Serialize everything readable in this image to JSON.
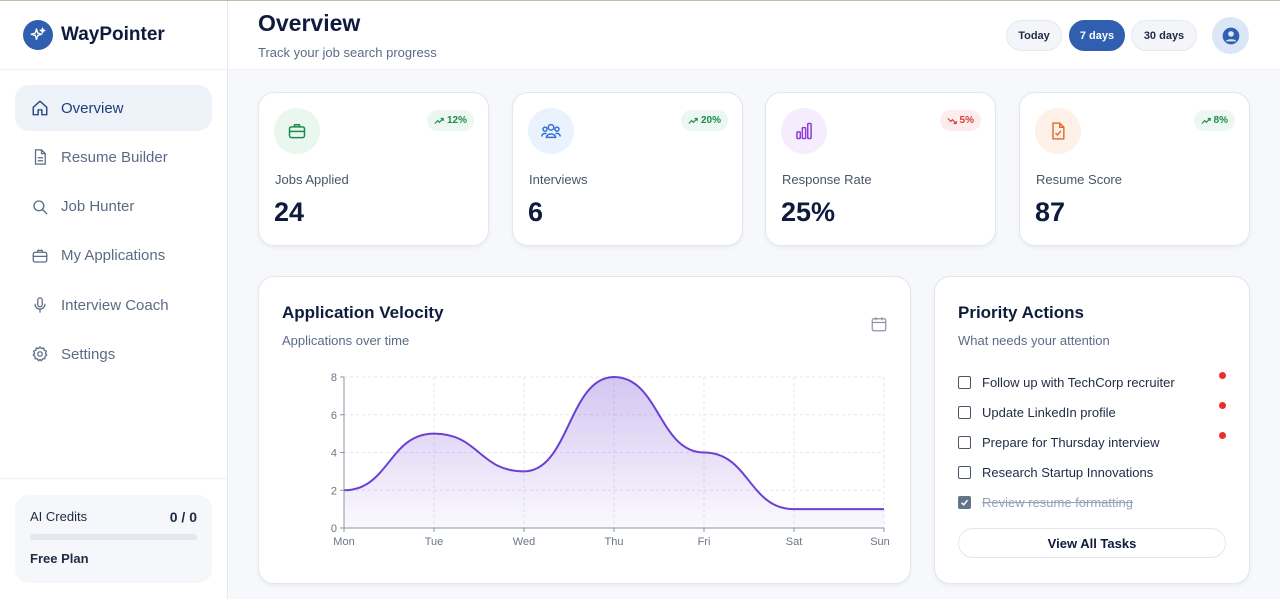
{
  "brand": {
    "name": "WayPointer",
    "accent": "#2f5fae"
  },
  "sidebar": {
    "items": [
      {
        "label": "Overview",
        "icon": "home-icon",
        "active": true
      },
      {
        "label": "Resume Builder",
        "icon": "document-icon",
        "active": false
      },
      {
        "label": "Job Hunter",
        "icon": "search-icon",
        "active": false
      },
      {
        "label": "My Applications",
        "icon": "briefcase-icon",
        "active": false
      },
      {
        "label": "Interview Coach",
        "icon": "microphone-icon",
        "active": false
      },
      {
        "label": "Settings",
        "icon": "gear-icon",
        "active": false
      }
    ],
    "credits": {
      "label": "AI Credits",
      "value": "0 / 0",
      "used_fraction": 0,
      "plan": "Free Plan"
    }
  },
  "header": {
    "title": "Overview",
    "subtitle": "Track your job search progress",
    "ranges": [
      "Today",
      "7 days",
      "30 days"
    ],
    "active_range": "7 days"
  },
  "stats": [
    {
      "label": "Jobs Applied",
      "value": "24",
      "change": "12%",
      "trend": "up",
      "icon": "briefcase-icon",
      "color": "#1e8a4f"
    },
    {
      "label": "Interviews",
      "value": "6",
      "change": "20%",
      "trend": "up",
      "icon": "users-icon",
      "color": "#2f6fd6"
    },
    {
      "label": "Response Rate",
      "value": "25%",
      "change": "5%",
      "trend": "down",
      "icon": "bar-chart-icon",
      "color": "#8b3fd6"
    },
    {
      "label": "Resume Score",
      "value": "87",
      "change": "8%",
      "trend": "up",
      "icon": "file-check-icon",
      "color": "#e0692b"
    }
  ],
  "velocity": {
    "title": "Application Velocity",
    "subtitle": "Applications over time"
  },
  "chart_data": {
    "type": "area",
    "categories": [
      "Mon",
      "Tue",
      "Wed",
      "Thu",
      "Fri",
      "Sat",
      "Sun"
    ],
    "series": [
      {
        "values": [
          2,
          5,
          3,
          8,
          4,
          1,
          1
        ]
      }
    ],
    "y_ticks": [
      0,
      2,
      4,
      6,
      8
    ],
    "ylim": [
      0,
      8
    ],
    "grid": true,
    "color": "#6d3fd3"
  },
  "priority": {
    "title": "Priority Actions",
    "subtitle": "What needs your attention",
    "tasks": [
      {
        "label": "Follow up with TechCorp recruiter",
        "done": false,
        "urgent": true
      },
      {
        "label": "Update LinkedIn profile",
        "done": false,
        "urgent": true
      },
      {
        "label": "Prepare for Thursday interview",
        "done": false,
        "urgent": true
      },
      {
        "label": "Research Startup Innovations",
        "done": false,
        "urgent": false
      },
      {
        "label": "Review resume formatting",
        "done": true,
        "urgent": false
      }
    ],
    "view_all": "View All Tasks"
  }
}
